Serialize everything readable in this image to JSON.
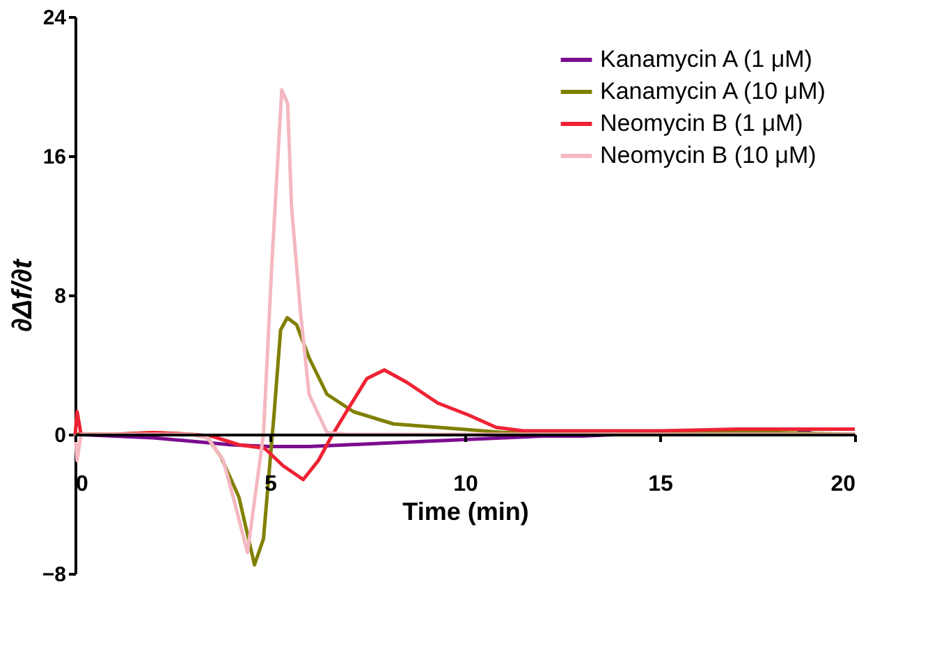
{
  "chart_data": {
    "type": "line",
    "xlabel": "Time (min)",
    "ylabel": "∂Δf/∂t",
    "xlim": [
      0,
      20
    ],
    "ylim": [
      -8,
      24
    ],
    "xticks": [
      0,
      5,
      10,
      15,
      20
    ],
    "yticks": [
      -8,
      0,
      8,
      16,
      24
    ],
    "grid": false,
    "legend": "top right",
    "marker": "none",
    "line_style": "solid",
    "series": [
      {
        "name": "Kanamycin A (1 μM)",
        "color": "#7b0d8f",
        "x": [
          0,
          1,
          2,
          3,
          4,
          5,
          6,
          7,
          8,
          9,
          10,
          11,
          12,
          13,
          14,
          15,
          16,
          17,
          17.5,
          18,
          18.5,
          19,
          20
        ],
        "values": [
          0,
          -0.1,
          -0.2,
          -0.4,
          -0.6,
          -0.7,
          -0.7,
          -0.6,
          -0.5,
          -0.4,
          -0.3,
          -0.2,
          -0.1,
          -0.1,
          0,
          0,
          0,
          0,
          0.2,
          0.3,
          0.3,
          0,
          0
        ]
      },
      {
        "name": "Kanamycin A (10 μM)",
        "color": "#808000",
        "x": [
          0,
          1,
          2,
          3,
          3.4,
          3.74,
          4.2,
          4.6,
          4.83,
          5.1,
          5.27,
          5.44,
          5.68,
          6.0,
          6.46,
          7.14,
          8.16,
          9.9,
          11,
          12,
          14,
          16,
          18,
          20
        ],
        "values": [
          0,
          0,
          0.1,
          0,
          -0.2,
          -1.3,
          -3.6,
          -7.5,
          -6.0,
          1.1,
          6.0,
          6.7,
          6.3,
          4.4,
          2.3,
          1.3,
          0.6,
          0.3,
          0.1,
          0.1,
          0.1,
          0.1,
          0.1,
          0
        ]
      },
      {
        "name": "Neomycin B   (1 μM)",
        "color": "#ee2233",
        "x": [
          0,
          0.05,
          0.15,
          1,
          2,
          3,
          3.5,
          4.2,
          4.86,
          5.33,
          5.85,
          6.24,
          6.58,
          7.04,
          7.48,
          7.93,
          8.5,
          9.3,
          10.1,
          10.8,
          11.5,
          13,
          15,
          17,
          20
        ],
        "values": [
          0,
          1.3,
          0,
          0,
          0.1,
          0,
          -0.1,
          -0.6,
          -0.8,
          -1.8,
          -2.6,
          -1.5,
          -0.1,
          1.6,
          3.2,
          3.7,
          3.0,
          1.8,
          1.1,
          0.4,
          0.2,
          0.2,
          0.2,
          0.3,
          0.3
        ]
      },
      {
        "name": "Neomycin B   (10 μM)",
        "color": "#f4b8c0",
        "x": [
          0,
          0.05,
          0.15,
          1,
          2,
          3,
          3.4,
          3.8,
          4.1,
          4.42,
          4.83,
          5.05,
          5.3,
          5.45,
          5.55,
          5.78,
          6.0,
          6.46,
          7,
          9,
          12,
          15,
          18,
          20
        ],
        "values": [
          0,
          -1.5,
          0,
          0,
          0,
          0,
          -0.2,
          -1.5,
          -4.0,
          -6.8,
          0,
          10,
          19.8,
          19.0,
          13.1,
          7.0,
          2.3,
          0.1,
          0,
          0,
          0,
          0,
          0,
          0
        ]
      }
    ]
  }
}
